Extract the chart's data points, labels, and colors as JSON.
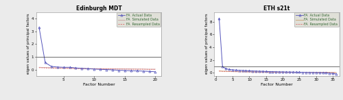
{
  "left": {
    "title": "Edinburgh MDT",
    "xlabel": "Factor Number",
    "ylabel": "eigen values of principal factors",
    "xlim": [
      0.5,
      21
    ],
    "ylim": [
      -0.5,
      4.5
    ],
    "xticks": [
      5,
      10,
      15,
      20
    ],
    "yticks": [
      0,
      1,
      2,
      3,
      4
    ],
    "hline_y": 1.0,
    "actual_x": [
      1,
      2,
      3,
      4,
      5,
      6,
      7,
      8,
      9,
      10,
      11,
      12,
      13,
      14,
      15,
      16,
      17,
      18,
      19,
      20
    ],
    "actual_y": [
      3.3,
      0.55,
      0.25,
      0.2,
      0.18,
      0.18,
      0.13,
      0.1,
      0.07,
      0.04,
      0.02,
      0.0,
      -0.02,
      -0.05,
      -0.07,
      -0.09,
      -0.1,
      -0.12,
      -0.14,
      -0.17
    ],
    "simulated_y": [
      0.18,
      0.16,
      0.15,
      0.13,
      0.12,
      0.11,
      0.1,
      0.09,
      0.08,
      0.08,
      0.07,
      0.07,
      0.06,
      0.06,
      0.05,
      0.05,
      0.04,
      0.04,
      0.03,
      0.03
    ],
    "resampled_y": [
      0.15,
      0.13,
      0.12,
      0.11,
      0.1,
      0.09,
      0.08,
      0.07,
      0.07,
      0.06,
      0.06,
      0.05,
      0.05,
      0.04,
      0.04,
      0.03,
      0.03,
      0.03,
      0.02,
      0.02
    ],
    "actual_color": "#5555bb",
    "simulated_color": "#c8a0a0",
    "resampled_color": "#dd6666",
    "legend_labels": [
      "FA  Actual Data",
      "FA  Simulated Data",
      "FA  Resampled Data"
    ]
  },
  "right": {
    "title": "ETH s21t",
    "xlabel": "Factor Number",
    "ylabel": "eigen values of principal factors",
    "xlim": [
      -0.5,
      37
    ],
    "ylim": [
      -0.5,
      9.5
    ],
    "xticks": [
      0,
      5,
      10,
      15,
      20,
      25,
      30,
      35
    ],
    "yticks": [
      0,
      2,
      4,
      6,
      8
    ],
    "hline_y": 1.0,
    "actual_x": [
      1,
      2,
      3,
      4,
      5,
      6,
      7,
      8,
      9,
      10,
      11,
      12,
      13,
      14,
      15,
      16,
      17,
      18,
      19,
      20,
      21,
      22,
      23,
      24,
      25,
      26,
      27,
      28,
      29,
      30,
      31,
      32,
      33,
      34,
      35,
      36
    ],
    "actual_y": [
      8.5,
      0.95,
      0.65,
      0.52,
      0.46,
      0.42,
      0.4,
      0.37,
      0.34,
      0.31,
      0.29,
      0.27,
      0.25,
      0.23,
      0.21,
      0.19,
      0.18,
      0.16,
      0.15,
      0.14,
      0.13,
      0.12,
      0.11,
      0.1,
      0.09,
      0.08,
      0.07,
      0.06,
      0.05,
      0.04,
      0.03,
      0.02,
      0.0,
      -0.05,
      -0.1,
      -0.18
    ],
    "simulated_y": [
      0.3,
      0.26,
      0.24,
      0.22,
      0.2,
      0.19,
      0.18,
      0.17,
      0.16,
      0.15,
      0.14,
      0.14,
      0.13,
      0.13,
      0.12,
      0.12,
      0.11,
      0.11,
      0.1,
      0.1,
      0.09,
      0.09,
      0.09,
      0.08,
      0.08,
      0.08,
      0.07,
      0.07,
      0.07,
      0.06,
      0.06,
      0.06,
      0.05,
      0.05,
      0.05,
      0.04
    ],
    "resampled_y": [
      0.25,
      0.22,
      0.2,
      0.19,
      0.17,
      0.16,
      0.15,
      0.15,
      0.14,
      0.13,
      0.13,
      0.12,
      0.12,
      0.11,
      0.11,
      0.1,
      0.1,
      0.09,
      0.09,
      0.09,
      0.08,
      0.08,
      0.08,
      0.07,
      0.07,
      0.07,
      0.06,
      0.06,
      0.06,
      0.05,
      0.05,
      0.05,
      0.05,
      0.04,
      0.04,
      0.04
    ],
    "actual_color": "#5555bb",
    "simulated_color": "#c8a070",
    "resampled_color": "#dd6666",
    "legend_labels": [
      "FA  Actual Data",
      "FA  Simulated Data",
      "FA  Resampled Data"
    ]
  },
  "bg_color": "#ebebeb",
  "legend_bg": "#e0e0d8",
  "axis_bg": "#ffffff",
  "legend_edge": "#999999"
}
